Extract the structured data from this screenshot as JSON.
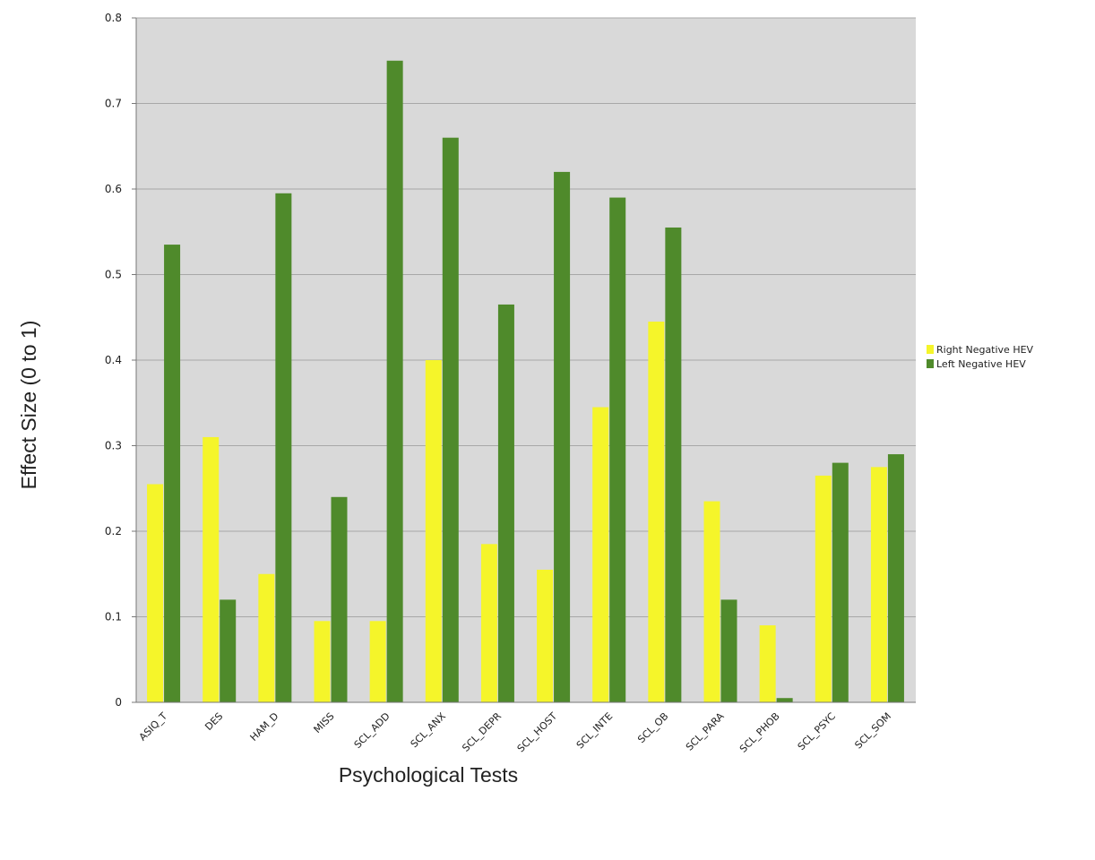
{
  "chart_data": {
    "type": "bar",
    "title": "",
    "xlabel": "Psychological Tests",
    "ylabel": "Effect Size (0 to 1)",
    "ylim": [
      0,
      0.8
    ],
    "yticks": [
      "0",
      "0.1",
      "0.2",
      "0.3",
      "0.4",
      "0.5",
      "0.6",
      "0.7",
      "0.8"
    ],
    "grid": true,
    "legend_position": "right",
    "categories": [
      "ASIQ_T",
      "DES",
      "HAM_D",
      "MISS",
      "SCL_ADD",
      "SCL_ANX",
      "SCL_DEPR",
      "SCL_HOST",
      "SCL_INTE",
      "SCL_OB",
      "SCL_PARA",
      "SCL_PHOB",
      "SCL_PSYC",
      "SCL_SOM"
    ],
    "series": [
      {
        "name": "Right Negative HEV",
        "color": "#f5f52a",
        "values": [
          0.255,
          0.31,
          0.15,
          0.095,
          0.095,
          0.4,
          0.185,
          0.155,
          0.345,
          0.445,
          0.235,
          0.09,
          0.265,
          0.275
        ]
      },
      {
        "name": "Left Negative HEV",
        "color": "#4f8a2b",
        "values": [
          0.535,
          0.12,
          0.595,
          0.24,
          0.75,
          0.66,
          0.465,
          0.62,
          0.59,
          0.555,
          0.12,
          0.005,
          0.28,
          0.29
        ]
      }
    ]
  }
}
